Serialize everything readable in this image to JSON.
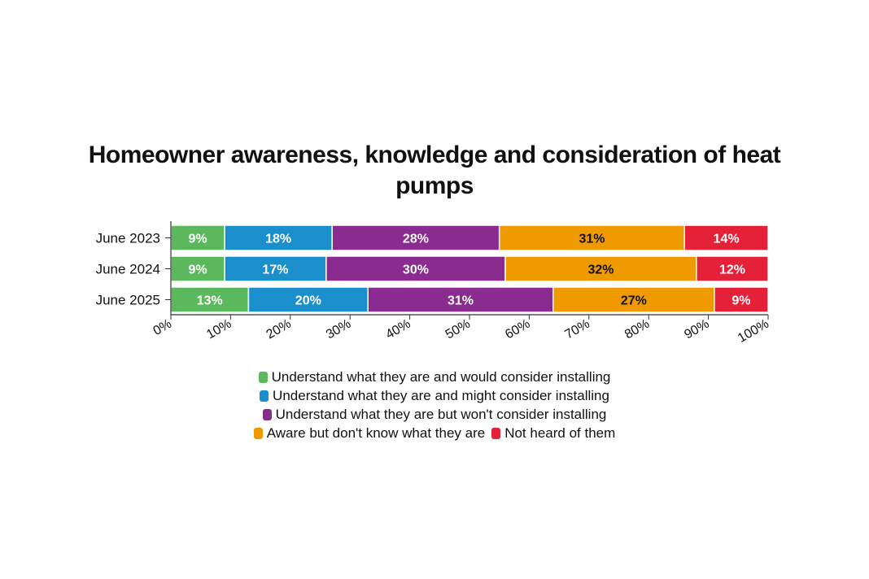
{
  "chart_data": {
    "type": "bar",
    "orientation": "horizontal",
    "stacked": true,
    "title": "Homeowner awareness, knowledge and consideration of heat pumps",
    "categories": [
      "June 2023",
      "June 2024",
      "June 2025"
    ],
    "xlim": [
      0,
      100
    ],
    "x_ticks": [
      "0%",
      "10%",
      "20%",
      "30%",
      "40%",
      "50%",
      "60%",
      "70%",
      "80%",
      "90%",
      "100%"
    ],
    "grid": false,
    "legend_position": "bottom",
    "series": [
      {
        "name": "Understand what they are and would consider installing",
        "color": "#5cb85c",
        "values": [
          9,
          9,
          13
        ],
        "labels": [
          "9%",
          "9%",
          "13%"
        ]
      },
      {
        "name": "Understand what they are and might consider installing",
        "color": "#1b8fcb",
        "values": [
          18,
          17,
          20
        ],
        "labels": [
          "18%",
          "17%",
          "20%"
        ]
      },
      {
        "name": "Understand what they are but won't consider installing",
        "color": "#8a2c8f",
        "values": [
          28,
          30,
          31
        ],
        "labels": [
          "28%",
          "30%",
          "31%"
        ]
      },
      {
        "name": "Aware but don't know what they are",
        "color": "#ee9a00",
        "values": [
          31,
          32,
          27
        ],
        "labels": [
          "31%",
          "32%",
          "27%"
        ]
      },
      {
        "name": "Not heard of them",
        "color": "#e5213a",
        "values": [
          14,
          12,
          9
        ],
        "labels": [
          "14%",
          "12%",
          "9%"
        ]
      }
    ],
    "label_text_color": [
      "#ffffff",
      "#ffffff",
      "#ffffff",
      "#111111",
      "#ffffff"
    ]
  }
}
